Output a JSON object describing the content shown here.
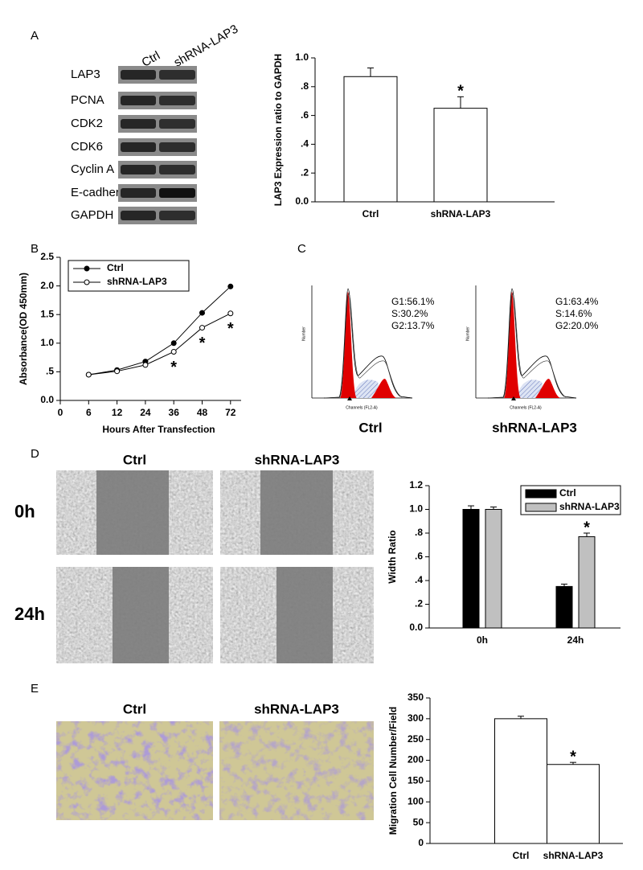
{
  "panels": {
    "a": "A",
    "b": "B",
    "c": "C",
    "d": "D",
    "e": "E"
  },
  "blot": {
    "lanes": [
      "Ctrl",
      "shRNA-LAP3"
    ],
    "proteins": [
      "LAP3",
      "PCNA",
      "CDK2",
      "CDK6",
      "Cyclin A",
      "E-cadherin",
      "GAPDH"
    ]
  },
  "flow": {
    "y_label": "Number",
    "x_label": "Channels (FL2-A)",
    "histograms": [
      {
        "label": "Ctrl",
        "stats": [
          "G1:56.1%",
          "S:30.2%",
          "G2:13.7%"
        ]
      },
      {
        "label": "shRNA-LAP3",
        "stats": [
          "G1:63.4%",
          "S:14.6%",
          "G2:20.0%"
        ]
      }
    ]
  },
  "scratch": {
    "columns": [
      "Ctrl",
      "shRNA-LAP3"
    ],
    "rows": [
      "0h",
      "24h"
    ]
  },
  "transwell": {
    "columns": [
      "Ctrl",
      "shRNA-LAP3"
    ]
  },
  "chart_data": [
    {
      "type": "bar",
      "y_label": "LAP3 Expression ratio to GAPDH",
      "categories": [
        "Ctrl",
        "shRNA-LAP3"
      ],
      "values": [
        0.87,
        0.65
      ],
      "errors": [
        0.06,
        0.08
      ],
      "significance": [
        null,
        "*"
      ],
      "color": "#ffffff",
      "ylim": [
        0,
        1
      ],
      "yticks": [
        {
          "value": 0,
          "label": "0.0"
        },
        {
          "value": 0.2,
          "label": ".2"
        },
        {
          "value": 0.4,
          "label": ".4"
        },
        {
          "value": 0.6,
          "label": ".6"
        },
        {
          "value": 0.8,
          "label": ".8"
        },
        {
          "value": 1,
          "label": "1.0"
        }
      ]
    },
    {
      "type": "line",
      "x_label": "Hours After Transfection",
      "y_label": "Absorbance(OD 450mm)",
      "categories": [
        "0",
        "6",
        "12",
        "24",
        "36",
        "48",
        "72"
      ],
      "series": [
        {
          "name": "Ctrl",
          "color": "#000000",
          "marker": "filled",
          "values": [
            null,
            0.45,
            0.53,
            0.68,
            1.0,
            1.53,
            1.99
          ]
        },
        {
          "name": "shRNA-LAP3",
          "color": "#000000",
          "marker": "open",
          "values": [
            null,
            0.45,
            0.51,
            0.62,
            0.85,
            1.27,
            1.52
          ],
          "significance": [
            null,
            null,
            null,
            null,
            "*",
            "*",
            "*"
          ]
        }
      ],
      "ylim": [
        0,
        2.5
      ],
      "yticks": [
        {
          "value": 0,
          "label": "0.0"
        },
        {
          "value": 0.5,
          "label": ".5"
        },
        {
          "value": 1,
          "label": "1.0"
        },
        {
          "value": 1.5,
          "label": "1.5"
        },
        {
          "value": 2,
          "label": "2.0"
        },
        {
          "value": 2.5,
          "label": "2.5"
        }
      ],
      "legend": "upper left"
    },
    {
      "type": "bar",
      "y_label": "Width Ratio",
      "categories": [
        "0h",
        "24h"
      ],
      "series": [
        {
          "name": "Ctrl",
          "color": "#000000",
          "values": [
            1.0,
            0.35
          ],
          "errors": [
            0.03,
            0.02
          ]
        },
        {
          "name": "shRNA-LAP3",
          "color": "#c0c0c0",
          "values": [
            1.0,
            0.77
          ],
          "errors": [
            0.02,
            0.03
          ],
          "significance": [
            null,
            "*"
          ]
        }
      ],
      "ylim": [
        0,
        1.2
      ],
      "yticks": [
        {
          "value": 0,
          "label": "0.0"
        },
        {
          "value": 0.2,
          "label": ".2"
        },
        {
          "value": 0.4,
          "label": ".4"
        },
        {
          "value": 0.6,
          "label": ".6"
        },
        {
          "value": 0.8,
          "label": ".8"
        },
        {
          "value": 1,
          "label": "1.0"
        },
        {
          "value": 1.2,
          "label": "1.2"
        }
      ],
      "legend": "upper right"
    },
    {
      "type": "bar",
      "y_label": "Migration Cell Number/Field",
      "categories": [
        "Ctrl",
        "shRNA-LAP3"
      ],
      "values": [
        300,
        190
      ],
      "errors": [
        6,
        5
      ],
      "significance": [
        null,
        "*"
      ],
      "color": "#ffffff",
      "ylim": [
        0,
        350
      ],
      "yticks": [
        0,
        50,
        100,
        150,
        200,
        250,
        300,
        350
      ]
    }
  ]
}
